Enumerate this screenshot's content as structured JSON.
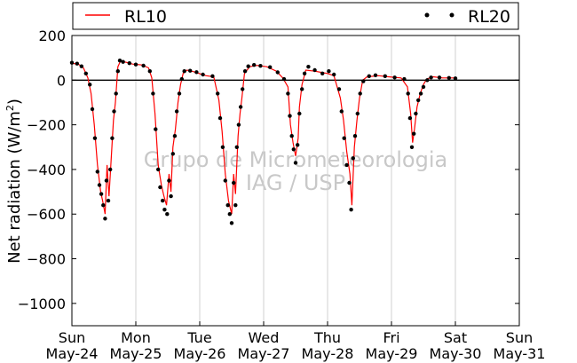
{
  "chart_data": {
    "type": "line",
    "ylabel_main": "Net radiation (W/m",
    "ylabel_sup": "2",
    "ylabel_end": ")",
    "ylim": [
      -1100,
      200
    ],
    "yticks": [
      200,
      0,
      -200,
      -400,
      -600,
      -800,
      -1000
    ],
    "ytick_labels": [
      "200",
      "0",
      "−200",
      "−400",
      "−600",
      "−800",
      "−1000"
    ],
    "xlim": [
      0,
      7
    ],
    "xticks": [
      {
        "day": "Sun",
        "date": "May-24"
      },
      {
        "day": "Mon",
        "date": "May-25"
      },
      {
        "day": "Tue",
        "date": "May-26"
      },
      {
        "day": "Wed",
        "date": "May-27"
      },
      {
        "day": "Thu",
        "date": "May-28"
      },
      {
        "day": "Fri",
        "date": "May-29"
      },
      {
        "day": "Sat",
        "date": "May-30"
      },
      {
        "day": "Sun",
        "date": "May-31"
      }
    ],
    "grid": "vertical",
    "legend_position": "top",
    "watermark": [
      "Grupo de Micrometeorologia",
      "IAG / USP"
    ],
    "series": [
      {
        "name": "RL10",
        "style": "line",
        "color": "#ff0000",
        "points": [
          [
            0.0,
            75
          ],
          [
            0.1,
            72
          ],
          [
            0.18,
            55
          ],
          [
            0.25,
            10
          ],
          [
            0.3,
            -60
          ],
          [
            0.35,
            -200
          ],
          [
            0.4,
            -380
          ],
          [
            0.45,
            -500
          ],
          [
            0.48,
            -540
          ],
          [
            0.52,
            -600
          ],
          [
            0.55,
            -380
          ],
          [
            0.58,
            -520
          ],
          [
            0.62,
            -330
          ],
          [
            0.65,
            -180
          ],
          [
            0.68,
            -100
          ],
          [
            0.7,
            -20
          ],
          [
            0.72,
            60
          ],
          [
            0.76,
            85
          ],
          [
            0.85,
            80
          ],
          [
            0.95,
            72
          ],
          [
            1.1,
            68
          ],
          [
            1.2,
            55
          ],
          [
            1.25,
            10
          ],
          [
            1.3,
            -150
          ],
          [
            1.35,
            -380
          ],
          [
            1.4,
            -470
          ],
          [
            1.44,
            -520
          ],
          [
            1.48,
            -560
          ],
          [
            1.52,
            -420
          ],
          [
            1.55,
            -500
          ],
          [
            1.58,
            -300
          ],
          [
            1.62,
            -220
          ],
          [
            1.66,
            -100
          ],
          [
            1.7,
            -20
          ],
          [
            1.74,
            30
          ],
          [
            1.8,
            45
          ],
          [
            1.9,
            38
          ],
          [
            2.1,
            20
          ],
          [
            2.22,
            15
          ],
          [
            2.3,
            -90
          ],
          [
            2.35,
            -230
          ],
          [
            2.4,
            -420
          ],
          [
            2.45,
            -540
          ],
          [
            2.5,
            -600
          ],
          [
            2.53,
            -420
          ],
          [
            2.56,
            -510
          ],
          [
            2.6,
            -250
          ],
          [
            2.63,
            -150
          ],
          [
            2.66,
            -80
          ],
          [
            2.7,
            30
          ],
          [
            2.78,
            60
          ],
          [
            2.9,
            66
          ],
          [
            3.05,
            60
          ],
          [
            3.2,
            40
          ],
          [
            3.3,
            10
          ],
          [
            3.38,
            -30
          ],
          [
            3.42,
            -200
          ],
          [
            3.46,
            -280
          ],
          [
            3.5,
            -340
          ],
          [
            3.54,
            -260
          ],
          [
            3.56,
            -120
          ],
          [
            3.6,
            -20
          ],
          [
            3.66,
            45
          ],
          [
            3.8,
            40
          ],
          [
            3.9,
            35
          ],
          [
            4.0,
            30
          ],
          [
            4.1,
            20
          ],
          [
            4.2,
            -80
          ],
          [
            4.25,
            -180
          ],
          [
            4.3,
            -320
          ],
          [
            4.35,
            -420
          ],
          [
            4.38,
            -560
          ],
          [
            4.42,
            -300
          ],
          [
            4.46,
            -180
          ],
          [
            4.5,
            -80
          ],
          [
            4.55,
            0
          ],
          [
            4.62,
            15
          ],
          [
            4.8,
            20
          ],
          [
            4.95,
            15
          ],
          [
            5.15,
            10
          ],
          [
            5.25,
            -30
          ],
          [
            5.3,
            -150
          ],
          [
            5.33,
            -280
          ],
          [
            5.36,
            -220
          ],
          [
            5.4,
            -120
          ],
          [
            5.45,
            -60
          ],
          [
            5.5,
            -20
          ],
          [
            5.55,
            5
          ],
          [
            5.65,
            15
          ],
          [
            5.8,
            10
          ],
          [
            6.0,
            10
          ]
        ]
      },
      {
        "name": "RL20",
        "style": "markers",
        "color": "#000000",
        "points": [
          [
            0.0,
            78
          ],
          [
            0.08,
            74
          ],
          [
            0.15,
            62
          ],
          [
            0.22,
            30
          ],
          [
            0.28,
            -20
          ],
          [
            0.32,
            -130
          ],
          [
            0.36,
            -260
          ],
          [
            0.4,
            -410
          ],
          [
            0.43,
            -470
          ],
          [
            0.46,
            -510
          ],
          [
            0.49,
            -560
          ],
          [
            0.52,
            -620
          ],
          [
            0.54,
            -450
          ],
          [
            0.57,
            -540
          ],
          [
            0.6,
            -400
          ],
          [
            0.63,
            -260
          ],
          [
            0.66,
            -140
          ],
          [
            0.69,
            -60
          ],
          [
            0.72,
            40
          ],
          [
            0.75,
            88
          ],
          [
            0.8,
            82
          ],
          [
            0.9,
            76
          ],
          [
            1.0,
            70
          ],
          [
            1.12,
            65
          ],
          [
            1.22,
            40
          ],
          [
            1.27,
            -60
          ],
          [
            1.31,
            -220
          ],
          [
            1.35,
            -400
          ],
          [
            1.38,
            -480
          ],
          [
            1.42,
            -540
          ],
          [
            1.45,
            -580
          ],
          [
            1.49,
            -600
          ],
          [
            1.52,
            -450
          ],
          [
            1.55,
            -520
          ],
          [
            1.58,
            -330
          ],
          [
            1.61,
            -250
          ],
          [
            1.64,
            -140
          ],
          [
            1.68,
            -60
          ],
          [
            1.72,
            5
          ],
          [
            1.76,
            40
          ],
          [
            1.85,
            42
          ],
          [
            1.95,
            36
          ],
          [
            2.05,
            25
          ],
          [
            2.2,
            18
          ],
          [
            2.28,
            -60
          ],
          [
            2.32,
            -170
          ],
          [
            2.36,
            -300
          ],
          [
            2.4,
            -450
          ],
          [
            2.44,
            -560
          ],
          [
            2.47,
            -600
          ],
          [
            2.5,
            -640
          ],
          [
            2.53,
            -460
          ],
          [
            2.56,
            -560
          ],
          [
            2.58,
            -300
          ],
          [
            2.61,
            -200
          ],
          [
            2.64,
            -120
          ],
          [
            2.67,
            -40
          ],
          [
            2.71,
            40
          ],
          [
            2.76,
            62
          ],
          [
            2.85,
            68
          ],
          [
            2.95,
            64
          ],
          [
            3.1,
            58
          ],
          [
            3.22,
            35
          ],
          [
            3.32,
            5
          ],
          [
            3.38,
            -60
          ],
          [
            3.41,
            -160
          ],
          [
            3.44,
            -250
          ],
          [
            3.47,
            -310
          ],
          [
            3.5,
            -370
          ],
          [
            3.53,
            -290
          ],
          [
            3.56,
            -150
          ],
          [
            3.6,
            -40
          ],
          [
            3.64,
            30
          ],
          [
            3.7,
            60
          ],
          [
            3.8,
            45
          ],
          [
            3.92,
            30
          ],
          [
            4.02,
            40
          ],
          [
            4.1,
            25
          ],
          [
            4.18,
            -40
          ],
          [
            4.22,
            -140
          ],
          [
            4.26,
            -260
          ],
          [
            4.3,
            -380
          ],
          [
            4.34,
            -460
          ],
          [
            4.37,
            -580
          ],
          [
            4.4,
            -350
          ],
          [
            4.43,
            -250
          ],
          [
            4.47,
            -150
          ],
          [
            4.51,
            -60
          ],
          [
            4.56,
            -5
          ],
          [
            4.65,
            18
          ],
          [
            4.75,
            22
          ],
          [
            4.9,
            18
          ],
          [
            5.05,
            12
          ],
          [
            5.2,
            5
          ],
          [
            5.26,
            -60
          ],
          [
            5.29,
            -170
          ],
          [
            5.32,
            -300
          ],
          [
            5.35,
            -240
          ],
          [
            5.38,
            -150
          ],
          [
            5.42,
            -90
          ],
          [
            5.46,
            -60
          ],
          [
            5.5,
            -30
          ],
          [
            5.56,
            0
          ],
          [
            5.62,
            12
          ],
          [
            5.75,
            12
          ],
          [
            5.9,
            10
          ],
          [
            6.0,
            8
          ]
        ]
      }
    ]
  }
}
